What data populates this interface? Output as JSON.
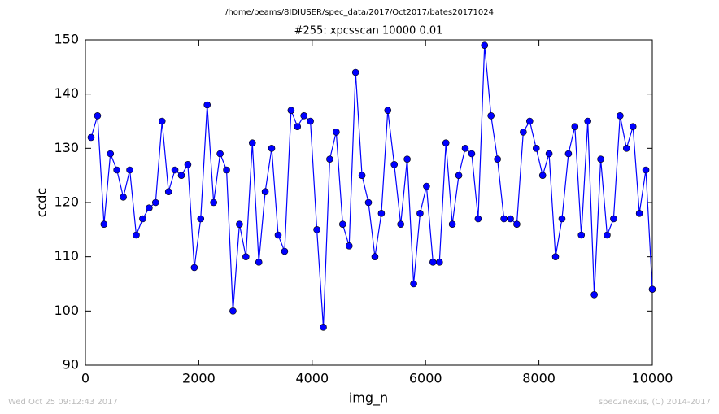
{
  "chart_data": {
    "type": "line",
    "suptitle": "/home/beams/8IDIUSER/spec_data/2017/Oct2017/bates20171024",
    "title": "#255: xpcsscan 10000 0.01",
    "xlabel": "img_n",
    "ylabel": "ccdc",
    "x": [
      100,
      214,
      328,
      441,
      555,
      669,
      783,
      897,
      1010,
      1124,
      1238,
      1352,
      1466,
      1579,
      1693,
      1807,
      1921,
      2034,
      2148,
      2262,
      2376,
      2490,
      2603,
      2717,
      2831,
      2945,
      3059,
      3172,
      3286,
      3400,
      3514,
      3628,
      3741,
      3855,
      3969,
      4083,
      4197,
      4310,
      4424,
      4538,
      4652,
      4766,
      4879,
      4993,
      5107,
      5221,
      5334,
      5448,
      5562,
      5676,
      5790,
      5903,
      6017,
      6131,
      6245,
      6359,
      6472,
      6586,
      6700,
      6814,
      6928,
      7041,
      7155,
      7269,
      7383,
      7497,
      7610,
      7724,
      7838,
      7952,
      8066,
      8179,
      8293,
      8407,
      8521,
      8634,
      8748,
      8862,
      8976,
      9090,
      9203,
      9317,
      9431,
      9545,
      9659,
      9772,
      9886,
      10000
    ],
    "values": [
      132,
      136,
      116,
      129,
      126,
      121,
      126,
      114,
      117,
      119,
      120,
      135,
      122,
      126,
      125,
      127,
      108,
      117,
      138,
      120,
      129,
      126,
      100,
      116,
      110,
      131,
      109,
      122,
      130,
      114,
      111,
      137,
      134,
      136,
      135,
      115,
      97,
      128,
      133,
      116,
      112,
      144,
      125,
      120,
      110,
      118,
      137,
      127,
      116,
      128,
      105,
      118,
      123,
      109,
      109,
      131,
      116,
      125,
      130,
      129,
      117,
      149,
      136,
      128,
      117,
      117,
      116,
      133,
      135,
      130,
      125,
      129,
      110,
      117,
      129,
      134,
      114,
      135,
      103,
      128,
      114,
      117,
      136,
      130,
      134,
      118,
      126,
      104
    ],
    "color": "#0000ff",
    "xlim": [
      0,
      10000
    ],
    "xticks": [
      0,
      2000,
      4000,
      6000,
      8000,
      10000
    ],
    "ylim": [
      90,
      150
    ],
    "yticks": [
      90,
      100,
      110,
      120,
      130,
      140,
      150
    ],
    "grid": false
  },
  "footer": {
    "left": "Wed Oct 25 09:12:43 2017",
    "right": "spec2nexus, (C) 2014-2017"
  }
}
